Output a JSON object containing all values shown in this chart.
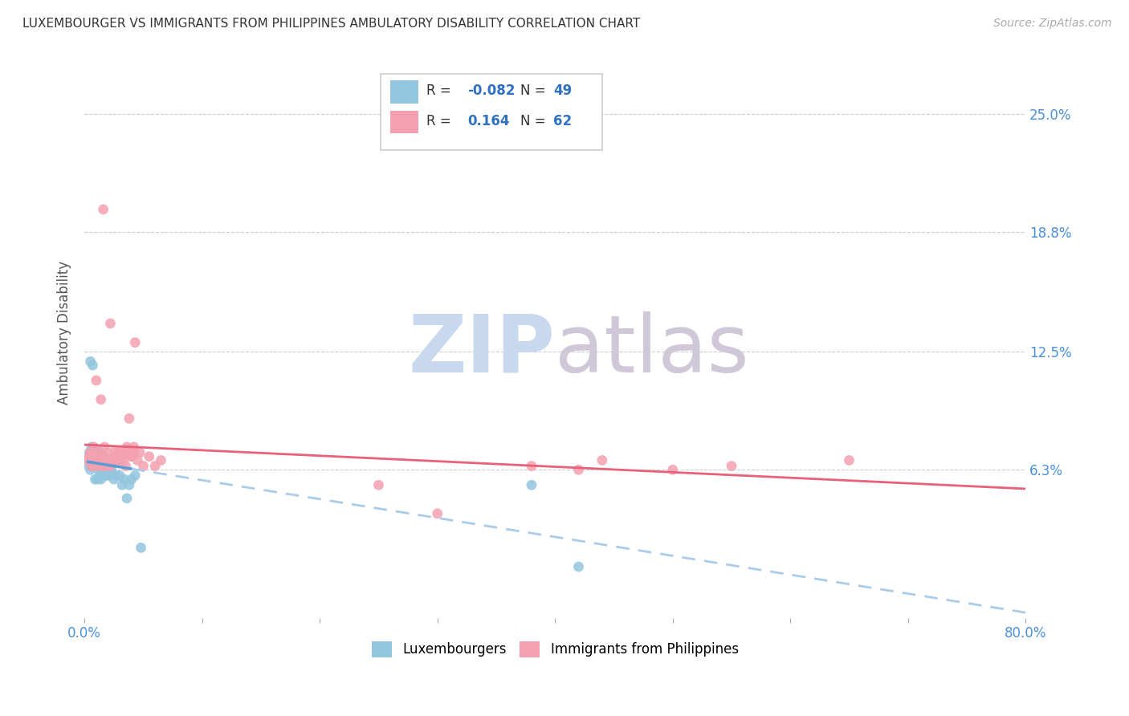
{
  "title": "LUXEMBOURGER VS IMMIGRANTS FROM PHILIPPINES AMBULATORY DISABILITY CORRELATION CHART",
  "source": "Source: ZipAtlas.com",
  "ylabel": "Ambulatory Disability",
  "ytick_vals": [
    0.063,
    0.125,
    0.188,
    0.25
  ],
  "ytick_labs": [
    "6.3%",
    "12.5%",
    "18.8%",
    "25.0%"
  ],
  "xlim": [
    0.0,
    0.8
  ],
  "ylim": [
    -0.015,
    0.285
  ],
  "color_blue": "#92c5de",
  "color_pink": "#f4a0b0",
  "line_blue_solid": "#5b9bd5",
  "line_blue_dash": "#aacce8",
  "line_pink": "#e8607a",
  "legend_r1_label": "R = ",
  "legend_r1_val": "-0.082",
  "legend_n1_label": "N = ",
  "legend_n1_val": "49",
  "legend_r2_label": "R =  ",
  "legend_r2_val": "0.164",
  "legend_n2_label": "N = ",
  "legend_n2_val": "62",
  "legend_color_val": "#3070c0",
  "legend_color_label": "#333333",
  "watermark": "ZIPatlas",
  "watermark_zip_color": "#c8d8ee",
  "watermark_atlas_color": "#d0c8d8",
  "blue_x": [
    0.003,
    0.004,
    0.004,
    0.005,
    0.005,
    0.005,
    0.006,
    0.006,
    0.007,
    0.007,
    0.008,
    0.008,
    0.008,
    0.009,
    0.009,
    0.01,
    0.01,
    0.011,
    0.011,
    0.012,
    0.012,
    0.013,
    0.013,
    0.014,
    0.014,
    0.015,
    0.015,
    0.016,
    0.017,
    0.018,
    0.018,
    0.019,
    0.02,
    0.021,
    0.022,
    0.023,
    0.025,
    0.027,
    0.028,
    0.03,
    0.032,
    0.034,
    0.036,
    0.038,
    0.04,
    0.043,
    0.048,
    0.38,
    0.42
  ],
  "blue_y": [
    0.068,
    0.072,
    0.065,
    0.12,
    0.07,
    0.063,
    0.075,
    0.068,
    0.118,
    0.072,
    0.07,
    0.065,
    0.068,
    0.068,
    0.058,
    0.072,
    0.065,
    0.068,
    0.058,
    0.073,
    0.063,
    0.07,
    0.06,
    0.068,
    0.058,
    0.065,
    0.063,
    0.068,
    0.07,
    0.065,
    0.06,
    0.063,
    0.06,
    0.065,
    0.062,
    0.063,
    0.058,
    0.06,
    0.068,
    0.06,
    0.055,
    0.058,
    0.048,
    0.055,
    0.058,
    0.06,
    0.022,
    0.055,
    0.012
  ],
  "pink_x": [
    0.003,
    0.004,
    0.005,
    0.006,
    0.006,
    0.007,
    0.008,
    0.008,
    0.009,
    0.01,
    0.01,
    0.011,
    0.012,
    0.012,
    0.013,
    0.014,
    0.015,
    0.015,
    0.016,
    0.017,
    0.017,
    0.018,
    0.019,
    0.02,
    0.021,
    0.022,
    0.023,
    0.025,
    0.026,
    0.028,
    0.029,
    0.03,
    0.031,
    0.032,
    0.033,
    0.035,
    0.036,
    0.038,
    0.04,
    0.042,
    0.043,
    0.045,
    0.047,
    0.05,
    0.055,
    0.06,
    0.065,
    0.038,
    0.04,
    0.042,
    0.028,
    0.035,
    0.022,
    0.018,
    0.38,
    0.42,
    0.44,
    0.5,
    0.55,
    0.65,
    0.25,
    0.3
  ],
  "pink_y": [
    0.068,
    0.07,
    0.072,
    0.065,
    0.068,
    0.07,
    0.075,
    0.065,
    0.068,
    0.11,
    0.07,
    0.068,
    0.072,
    0.065,
    0.068,
    0.1,
    0.07,
    0.065,
    0.2,
    0.068,
    0.075,
    0.065,
    0.068,
    0.072,
    0.068,
    0.065,
    0.068,
    0.07,
    0.073,
    0.068,
    0.072,
    0.068,
    0.073,
    0.07,
    0.068,
    0.073,
    0.075,
    0.09,
    0.07,
    0.075,
    0.13,
    0.068,
    0.072,
    0.065,
    0.07,
    0.065,
    0.068,
    0.073,
    0.07,
    0.072,
    0.068,
    0.065,
    0.14,
    0.068,
    0.065,
    0.063,
    0.068,
    0.063,
    0.065,
    0.068,
    0.055,
    0.04
  ]
}
